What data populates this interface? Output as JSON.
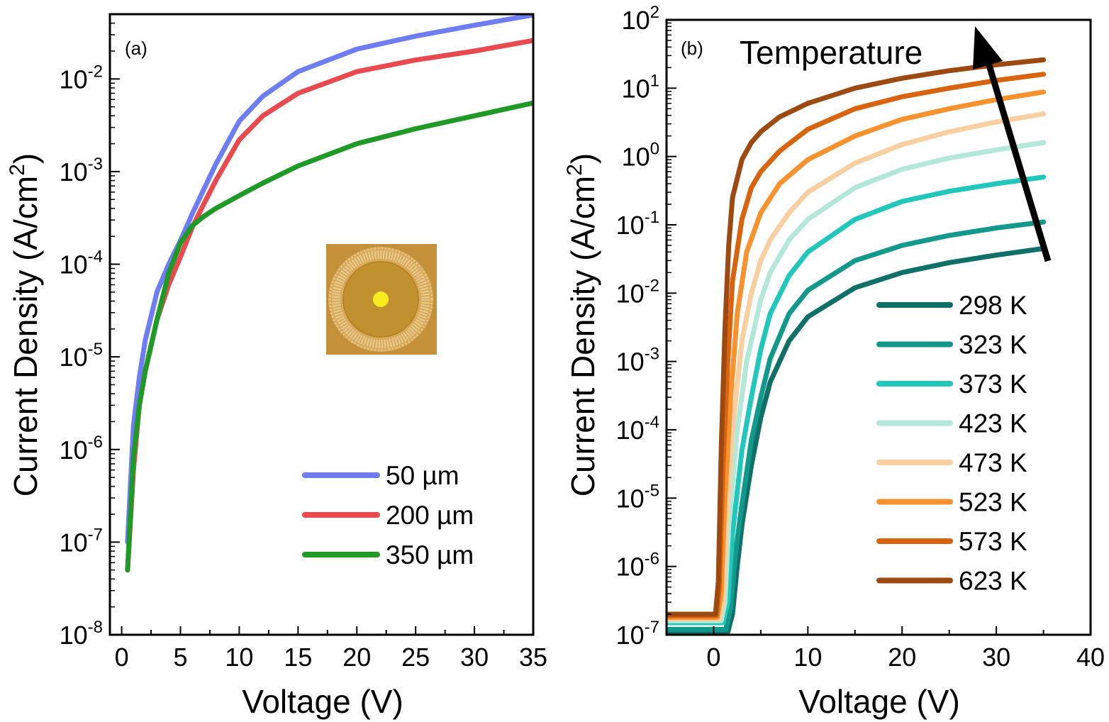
{
  "chart_data": [
    {
      "type": "line",
      "panel_label": "(a)",
      "xlabel": "Voltage (V)",
      "ylabel_main": "Current Density (A/cm",
      "ylabel_sup": "2",
      "ylabel_close": ")",
      "yscale": "log",
      "xlim": [
        -1,
        35
      ],
      "ylim": [
        1e-08,
        0.05
      ],
      "x_ticks": [
        0,
        5,
        10,
        15,
        20,
        25,
        30,
        35
      ],
      "x_tick_labels": [
        "0",
        "5",
        "10",
        "15",
        "20",
        "25",
        "30",
        "35"
      ],
      "y_ticks": [
        -8,
        -7,
        -6,
        -5,
        -4,
        -3,
        -2
      ],
      "y_tick_labels": [
        {
          "base": "10",
          "exp": "-8"
        },
        {
          "base": "10",
          "exp": "-7"
        },
        {
          "base": "10",
          "exp": "-6"
        },
        {
          "base": "10",
          "exp": "-5"
        },
        {
          "base": "10",
          "exp": "-4"
        },
        {
          "base": "10",
          "exp": "-3"
        },
        {
          "base": "10",
          "exp": "-2"
        }
      ],
      "legend_position": "bottom-right",
      "inset": "micrograph of circular device",
      "series": [
        {
          "name": "50 µm",
          "color": "#6e7ef2",
          "x": [
            0.5,
            1,
            1.5,
            2,
            3,
            4,
            5,
            6,
            7,
            8,
            10,
            12,
            15,
            20,
            25,
            30,
            35
          ],
          "y": [
            1e-07,
            1.8e-06,
            6e-06,
            1.5e-05,
            5e-05,
            0.0001,
            0.00018,
            0.00035,
            0.00065,
            0.0012,
            0.0035,
            0.0065,
            0.012,
            0.021,
            0.029,
            0.038,
            0.049
          ]
        },
        {
          "name": "200 µm",
          "color": "#e84a4f",
          "x": [
            0.5,
            1,
            1.5,
            2,
            3,
            4,
            5,
            6,
            7,
            8,
            10,
            12,
            15,
            20,
            25,
            30,
            35
          ],
          "y": [
            5e-08,
            6e-07,
            3e-06,
            7e-06,
            2.5e-05,
            6e-05,
            0.00012,
            0.00025,
            0.00045,
            0.0008,
            0.0022,
            0.004,
            0.007,
            0.012,
            0.016,
            0.02,
            0.026
          ]
        },
        {
          "name": "350 µm",
          "color": "#1f9a27",
          "x": [
            0.5,
            1,
            1.5,
            2,
            3,
            4,
            5,
            6,
            7,
            8,
            10,
            12,
            15,
            20,
            25,
            30,
            35
          ],
          "y": [
            5e-08,
            8e-07,
            3e-06,
            7e-06,
            2.5e-05,
            8e-05,
            0.00017,
            0.00026,
            0.00033,
            0.0004,
            0.00055,
            0.00075,
            0.00115,
            0.002,
            0.0029,
            0.004,
            0.0055
          ]
        }
      ]
    },
    {
      "type": "line",
      "panel_label": "(b)",
      "annotation": "Temperature",
      "xlabel": "Voltage (V)",
      "ylabel_main": "Current Density (A/cm",
      "ylabel_sup": "2",
      "ylabel_close": ")",
      "yscale": "log",
      "xlim": [
        -5,
        40
      ],
      "ylim": [
        1e-07,
        100
      ],
      "x_ticks": [
        0,
        10,
        20,
        30,
        40
      ],
      "x_tick_labels": [
        "0",
        "10",
        "20",
        "30",
        "40"
      ],
      "y_ticks": [
        -7,
        -6,
        -5,
        -4,
        -3,
        -2,
        -1,
        0,
        1,
        2
      ],
      "y_tick_labels": [
        {
          "base": "10",
          "exp": "-7"
        },
        {
          "base": "10",
          "exp": "-6"
        },
        {
          "base": "10",
          "exp": "-5"
        },
        {
          "base": "10",
          "exp": "-4"
        },
        {
          "base": "10",
          "exp": "-3"
        },
        {
          "base": "10",
          "exp": "-2"
        },
        {
          "base": "10",
          "exp": "-1"
        },
        {
          "base": "10",
          "exp": "0"
        },
        {
          "base": "10",
          "exp": "1"
        },
        {
          "base": "10",
          "exp": "2"
        }
      ],
      "legend_position": "bottom-right",
      "series": [
        {
          "name": "298 K",
          "color": "#0f7068",
          "x": [
            -5,
            0,
            1.5,
            2,
            2.5,
            3,
            4,
            5,
            6,
            8,
            10,
            15,
            20,
            25,
            30,
            35
          ],
          "y": [
            1.1e-07,
            1.1e-07,
            1.1e-07,
            2e-07,
            1e-06,
            4e-06,
            3e-05,
            0.00015,
            0.0005,
            0.002,
            0.0045,
            0.012,
            0.02,
            0.028,
            0.036,
            0.045
          ]
        },
        {
          "name": "323 K",
          "color": "#12998c",
          "x": [
            -5,
            0,
            1.3,
            1.8,
            2.3,
            3,
            4,
            5,
            6,
            8,
            10,
            15,
            20,
            25,
            30,
            35
          ],
          "y": [
            1.2e-07,
            1.2e-07,
            1.2e-07,
            2.5e-07,
            1.5e-06,
            8e-06,
            7e-05,
            0.0003,
            0.0011,
            0.005,
            0.011,
            0.03,
            0.05,
            0.07,
            0.09,
            0.11
          ]
        },
        {
          "name": "373 K",
          "color": "#22c7bb",
          "x": [
            -5,
            0,
            1,
            1.5,
            2,
            3,
            4,
            5,
            6,
            8,
            10,
            15,
            20,
            25,
            30,
            35
          ],
          "y": [
            1.5e-07,
            1.5e-07,
            1.5e-07,
            3e-07,
            3e-06,
            5e-05,
            0.0003,
            0.0015,
            0.005,
            0.018,
            0.04,
            0.12,
            0.22,
            0.31,
            0.4,
            0.5
          ]
        },
        {
          "name": "423 K",
          "color": "#b3e8d9",
          "x": [
            -5,
            0,
            0.8,
            1.2,
            1.6,
            2.5,
            3.5,
            5,
            6,
            8,
            10,
            15,
            20,
            25,
            30,
            35
          ],
          "y": [
            1.6e-07,
            1.6e-07,
            1.6e-07,
            3e-07,
            4e-06,
            0.0001,
            0.001,
            0.008,
            0.02,
            0.06,
            0.12,
            0.35,
            0.65,
            0.95,
            1.25,
            1.6
          ]
        },
        {
          "name": "473 K",
          "color": "#f7cfa1",
          "x": [
            -5,
            0,
            0.6,
            1,
            1.4,
            2,
            3,
            4,
            5,
            6,
            8,
            10,
            15,
            20,
            25,
            30,
            35
          ],
          "y": [
            1.7e-07,
            1.7e-07,
            1.7e-07,
            3e-07,
            5e-06,
            0.0001,
            0.002,
            0.01,
            0.03,
            0.06,
            0.15,
            0.3,
            0.8,
            1.5,
            2.3,
            3.2,
            4.2
          ]
        },
        {
          "name": "523 K",
          "color": "#f7922f",
          "x": [
            -5,
            0,
            0.4,
            0.8,
            1.2,
            1.8,
            2.5,
            3.5,
            5,
            7,
            10,
            15,
            20,
            25,
            30,
            35
          ],
          "y": [
            1.8e-07,
            1.8e-07,
            1.8e-07,
            4e-07,
            1e-05,
            0.0003,
            0.005,
            0.04,
            0.15,
            0.4,
            0.9,
            2,
            3.5,
            5,
            6.8,
            8.8
          ]
        },
        {
          "name": "573 K",
          "color": "#d8640f",
          "x": [
            -5,
            0,
            0.3,
            0.6,
            1,
            1.5,
            2,
            3,
            4,
            5,
            7,
            10,
            15,
            20,
            25,
            30,
            35
          ],
          "y": [
            1.9e-07,
            1.9e-07,
            1.9e-07,
            5e-07,
            3e-05,
            0.001,
            0.015,
            0.12,
            0.35,
            0.6,
            1.2,
            2.5,
            5,
            7.5,
            10,
            13,
            16
          ]
        },
        {
          "name": "623 K",
          "color": "#9c4a12",
          "x": [
            -5,
            0,
            0.2,
            0.5,
            0.8,
            1.2,
            1.6,
            2,
            3,
            4,
            5,
            7,
            10,
            15,
            20,
            25,
            30,
            35
          ],
          "y": [
            2e-07,
            2e-07,
            2e-07,
            6e-07,
            5e-05,
            0.003,
            0.05,
            0.25,
            0.9,
            1.6,
            2.3,
            3.8,
            6,
            10,
            14,
            18,
            22,
            26
          ]
        }
      ]
    }
  ]
}
